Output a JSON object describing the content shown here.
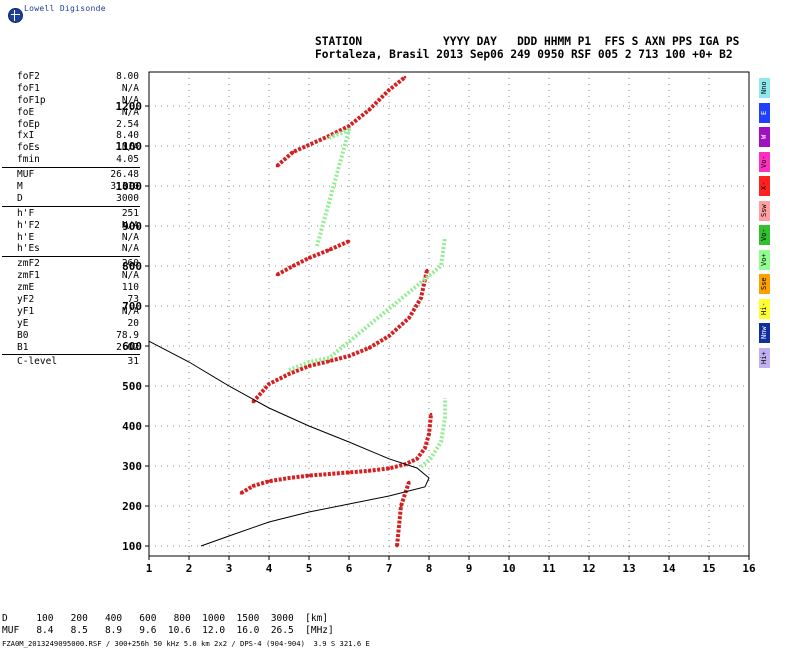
{
  "brand": "Lowell Digisonde",
  "header": {
    "line1": "STATION            YYYY DAY   DDD HHMM P1  FFS S AXN PPS IGA PS",
    "line2": "Fortaleza, Brasil 2013 Sep06 249 0950 RSF 005 2 713 100 +0+ B2"
  },
  "parameters": [
    [
      {
        "key": "foF2",
        "value": "8.00"
      },
      {
        "key": "foF1",
        "value": "N/A"
      },
      {
        "key": "foF1p",
        "value": "N/A"
      },
      {
        "key": "foE",
        "value": "N/A"
      },
      {
        "key": "foEp",
        "value": "2.54"
      },
      {
        "key": "fxI",
        "value": "8.40"
      },
      {
        "key": "foEs",
        "value": "N/A"
      },
      {
        "key": "fmin",
        "value": "4.05"
      }
    ],
    [
      {
        "key": "MUF",
        "value": "26.48"
      },
      {
        "key": "M",
        "value": "3.310"
      },
      {
        "key": "D",
        "value": "3000"
      }
    ],
    [
      {
        "key": "h'F",
        "value": "251"
      },
      {
        "key": "h'F2",
        "value": "N/A"
      },
      {
        "key": "h'E",
        "value": "N/A"
      },
      {
        "key": "h'Es",
        "value": "N/A"
      }
    ],
    [
      {
        "key": "zmF2",
        "value": "260"
      },
      {
        "key": "zmF1",
        "value": "N/A"
      },
      {
        "key": "zmE",
        "value": "110"
      },
      {
        "key": "yF2",
        "value": "73"
      },
      {
        "key": "yF1",
        "value": "N/A"
      },
      {
        "key": "yE",
        "value": "20"
      },
      {
        "key": "B0",
        "value": "78.9"
      },
      {
        "key": "B1",
        "value": "2.02"
      }
    ],
    [
      {
        "key": "C-level",
        "value": "31"
      }
    ]
  ],
  "legend": [
    {
      "label": "Nno",
      "color": "#8ee8ee"
    },
    {
      "label": "E",
      "color": "#2040ff"
    },
    {
      "label": "W",
      "color": "#a010c0"
    },
    {
      "label": "Vo-",
      "color": "#ff30c0"
    },
    {
      "label": "X-",
      "color": "#ff2020"
    },
    {
      "label": "Ssw",
      "color": "#ff9fa0"
    },
    {
      "label": "Vo-",
      "color": "#30c030"
    },
    {
      "label": "Vo+",
      "color": "#90ff90"
    },
    {
      "label": "Sse",
      "color": "#ffa000"
    },
    {
      "label": "Hi-",
      "color": "#ffff30"
    },
    {
      "label": "Nnw",
      "color": "#1030a0"
    },
    {
      "label": "Hi+",
      "color": "#c0b0f0"
    }
  ],
  "bottom_table": {
    "line1": "D     100   200   400   600   800  1000  1500  3000  [km]",
    "line2": "MUF   8.4   8.5   8.9   9.6  10.6  12.0  16.0  26.5  [MHz]"
  },
  "footer": "FZA0M_2013249095000.RSF / 300+256h 50 kHz 5.0 km 2x2 / DPS-4 (904-904)  3.9 S 321.6 E",
  "chart_data": {
    "type": "scatter",
    "title": "",
    "xlabel": "",
    "ylabel": "",
    "xlim": [
      1,
      16
    ],
    "ylim": [
      75,
      1285
    ],
    "x_ticks": [
      1,
      2,
      3,
      4,
      5,
      6,
      7,
      8,
      9,
      10,
      11,
      12,
      13,
      14,
      15,
      16
    ],
    "y_ticks": [
      100,
      200,
      300,
      400,
      500,
      600,
      700,
      800,
      900,
      1000,
      1100,
      1200
    ],
    "grid": true,
    "colors": {
      "o_trace": "#d42020",
      "x_trace": "#90ee90",
      "profile": "#000000"
    },
    "series": [
      {
        "name": "O-trace",
        "points": [
          [
            3.3,
            232
          ],
          [
            3.6,
            250
          ],
          [
            4.0,
            262
          ],
          [
            4.5,
            270
          ],
          [
            5.0,
            276
          ],
          [
            5.5,
            280
          ],
          [
            6.0,
            284
          ],
          [
            6.5,
            288
          ],
          [
            7.0,
            294
          ],
          [
            7.4,
            304
          ],
          [
            7.7,
            318
          ],
          [
            7.9,
            345
          ],
          [
            8.0,
            380
          ],
          [
            8.05,
            430
          ]
        ]
      },
      {
        "name": "O-trace",
        "points": [
          [
            3.6,
            460
          ],
          [
            4.0,
            505
          ],
          [
            4.5,
            530
          ],
          [
            5.0,
            550
          ],
          [
            5.5,
            562
          ],
          [
            6.0,
            575
          ],
          [
            6.5,
            595
          ],
          [
            7.0,
            625
          ],
          [
            7.5,
            670
          ],
          [
            7.8,
            720
          ],
          [
            7.95,
            790
          ]
        ]
      },
      {
        "name": "O-trace",
        "points": [
          [
            4.2,
            778
          ],
          [
            4.6,
            800
          ],
          [
            5.0,
            820
          ],
          [
            5.5,
            840
          ],
          [
            6.0,
            862
          ]
        ]
      },
      {
        "name": "O-trace",
        "points": [
          [
            4.2,
            1050
          ],
          [
            4.6,
            1085
          ],
          [
            5.5,
            1125
          ],
          [
            6.0,
            1150
          ],
          [
            6.5,
            1190
          ],
          [
            7.0,
            1240
          ],
          [
            7.4,
            1272
          ]
        ]
      },
      {
        "name": "O-trace",
        "points": [
          [
            7.2,
            100
          ],
          [
            7.3,
            200
          ],
          [
            7.5,
            260
          ]
        ]
      },
      {
        "name": "X-trace",
        "points": [
          [
            7.8,
            298
          ],
          [
            8.05,
            320
          ],
          [
            8.3,
            360
          ],
          [
            8.4,
            420
          ],
          [
            8.4,
            470
          ]
        ]
      },
      {
        "name": "X-trace",
        "points": [
          [
            4.5,
            540
          ],
          [
            5.0,
            560
          ],
          [
            5.5,
            570
          ],
          [
            8.3,
            800
          ],
          [
            8.4,
            870
          ]
        ]
      },
      {
        "name": "X-trace",
        "points": [
          [
            5.5,
            1120
          ],
          [
            6.0,
            1140
          ],
          [
            5.2,
            850
          ]
        ]
      },
      {
        "name": "Profile",
        "points": [
          [
            2.3,
            100
          ],
          [
            3.0,
            125
          ],
          [
            4.0,
            160
          ],
          [
            5.0,
            185
          ],
          [
            6.0,
            205
          ],
          [
            7.0,
            225
          ],
          [
            7.9,
            248
          ],
          [
            8.0,
            270
          ],
          [
            7.7,
            295
          ],
          [
            7.0,
            318
          ],
          [
            6.0,
            360
          ],
          [
            5.0,
            400
          ],
          [
            4.0,
            445
          ],
          [
            3.0,
            500
          ],
          [
            2.0,
            560
          ],
          [
            1.0,
            612
          ]
        ]
      }
    ]
  }
}
